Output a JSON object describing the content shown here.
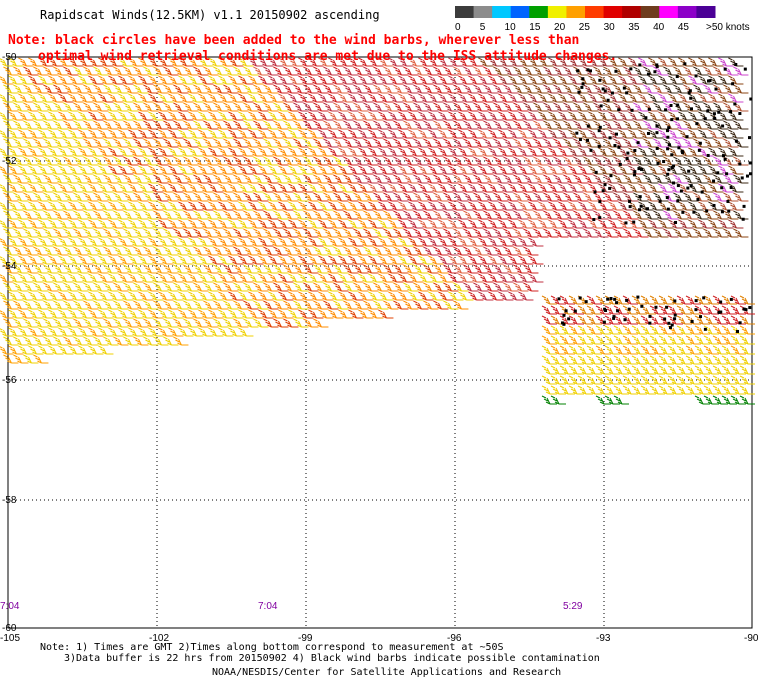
{
  "title": "Rapidscat Winds(12.5KM) v1.1 20150902 ascending",
  "note": {
    "line1": "Note: black circles have been added to the wind barbs, wherever less than",
    "line2": "optimal wind retrieval conditions are met due to the ISS attitude changes."
  },
  "legend": {
    "unit": ">50 knots",
    "labels": [
      "0",
      "5",
      "10",
      "15",
      "20",
      "25",
      "30",
      "35",
      "40",
      "45"
    ],
    "colors": [
      "#3c3c3c",
      "#8c8c8c",
      "#00c8ff",
      "#0064ff",
      "#00a000",
      "#f0f000",
      "#ffa000",
      "#ff3c00",
      "#e00000",
      "#b00000",
      "#6e3c1e",
      "#ff00ff",
      "#8c00c8",
      "#4b0096"
    ]
  },
  "axes": {
    "lon_labels": [
      "-105",
      "-102",
      "-99",
      "-96",
      "-93",
      "-90"
    ],
    "lat_labels": [
      "-50",
      "-52",
      "-54",
      "-56",
      "-58",
      "-60"
    ]
  },
  "pass_times": [
    "7:04",
    "7:04",
    "5:29"
  ],
  "footnotes": {
    "line1": "Note: 1) Times are GMT 2)Times along bottom correspond to measurement at ~50S",
    "line2": "3)Data buffer is 22 hrs from 20150902 4) Black wind barbs indicate possible contamination",
    "line3": "NOAA/NESDIS/Center for Satellite Applications and Research"
  },
  "colors": {
    "note": "#ff0000",
    "pass_time": "#8000a0",
    "grid": "#000000"
  }
}
